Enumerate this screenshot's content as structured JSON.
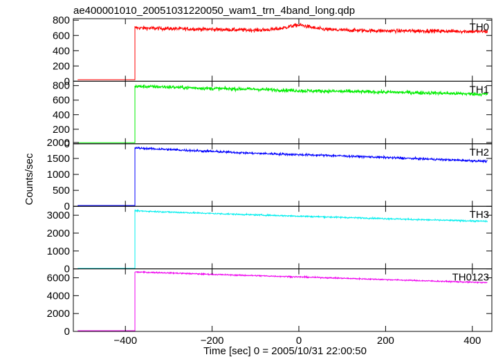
{
  "chart_data": {
    "type": "line",
    "title": "ae400001010_20051031220050_wam1_trn_4band_long.qdp",
    "xlabel": "Time [sec] 0 = 2005/10/31 22:00:50",
    "ylabel": "Counts/sec",
    "xlim": [
      -520,
      445
    ],
    "x_ticks": [
      -400,
      -200,
      0,
      200,
      400
    ],
    "x_tick_labels": [
      "−400",
      "−200",
      "0",
      "200",
      "400"
    ],
    "onset_time": -378,
    "data_end_time": 435,
    "data_start_time": -510,
    "grid": false,
    "panels": [
      {
        "name": "TH0",
        "color": "#ff0000",
        "ylim": [
          0,
          820
        ],
        "yticks": [
          0,
          200,
          400,
          600,
          800
        ],
        "ytick_labels": [
          "0",
          "200",
          "400",
          "600",
          "800"
        ],
        "pre_level": 20,
        "levels": [
          [
            -378,
            700
          ],
          [
            -300,
            690
          ],
          [
            -200,
            680
          ],
          [
            -100,
            670
          ],
          [
            0,
            690
          ],
          [
            100,
            670
          ],
          [
            200,
            660
          ],
          [
            300,
            660
          ],
          [
            435,
            650
          ]
        ],
        "noise": 25,
        "bump": [
          0,
          45,
          25
        ]
      },
      {
        "name": "TH1",
        "color": "#00ee00",
        "ylim": [
          0,
          860
        ],
        "yticks": [
          0,
          200,
          400,
          600,
          800
        ],
        "ytick_labels": [
          "0",
          "200",
          "400",
          "600",
          "800"
        ],
        "pre_level": 15,
        "levels": [
          [
            -378,
            790
          ],
          [
            -300,
            780
          ],
          [
            -200,
            760
          ],
          [
            -100,
            750
          ],
          [
            0,
            730
          ],
          [
            100,
            720
          ],
          [
            200,
            710
          ],
          [
            300,
            700
          ],
          [
            435,
            680
          ]
        ],
        "noise": 25
      },
      {
        "name": "TH2",
        "color": "#0000ff",
        "ylim": [
          0,
          1960
        ],
        "yticks": [
          0,
          500,
          1000,
          1500,
          2000
        ],
        "ytick_labels": [
          "0",
          "500",
          "1000",
          "1500",
          "2000"
        ],
        "pre_level": 25,
        "levels": [
          [
            -378,
            1830
          ],
          [
            -300,
            1780
          ],
          [
            -200,
            1720
          ],
          [
            -100,
            1660
          ],
          [
            0,
            1620
          ],
          [
            100,
            1580
          ],
          [
            200,
            1530
          ],
          [
            300,
            1480
          ],
          [
            435,
            1410
          ]
        ],
        "noise": 35
      },
      {
        "name": "TH3",
        "color": "#00eeee",
        "ylim": [
          0,
          3500
        ],
        "yticks": [
          0,
          1000,
          2000,
          3000
        ],
        "ytick_labels": [
          "0",
          "1000",
          "2000",
          "3000"
        ],
        "pre_level": 30,
        "levels": [
          [
            -378,
            3250
          ],
          [
            -300,
            3180
          ],
          [
            -200,
            3100
          ],
          [
            -100,
            3020
          ],
          [
            0,
            2950
          ],
          [
            100,
            2880
          ],
          [
            200,
            2810
          ],
          [
            300,
            2740
          ],
          [
            435,
            2660
          ]
        ],
        "noise": 40
      },
      {
        "name": "TH0123",
        "color": "#ee00ee",
        "ylim": [
          0,
          7000
        ],
        "yticks": [
          0,
          2000,
          4000,
          6000
        ],
        "ytick_labels": [
          "0",
          "2000",
          "4000",
          "6000"
        ],
        "pre_level": 80,
        "levels": [
          [
            -378,
            6650
          ],
          [
            -300,
            6550
          ],
          [
            -200,
            6380
          ],
          [
            -100,
            6240
          ],
          [
            0,
            6100
          ],
          [
            100,
            5950
          ],
          [
            200,
            5800
          ],
          [
            300,
            5650
          ],
          [
            435,
            5450
          ]
        ],
        "noise": 70
      }
    ]
  }
}
